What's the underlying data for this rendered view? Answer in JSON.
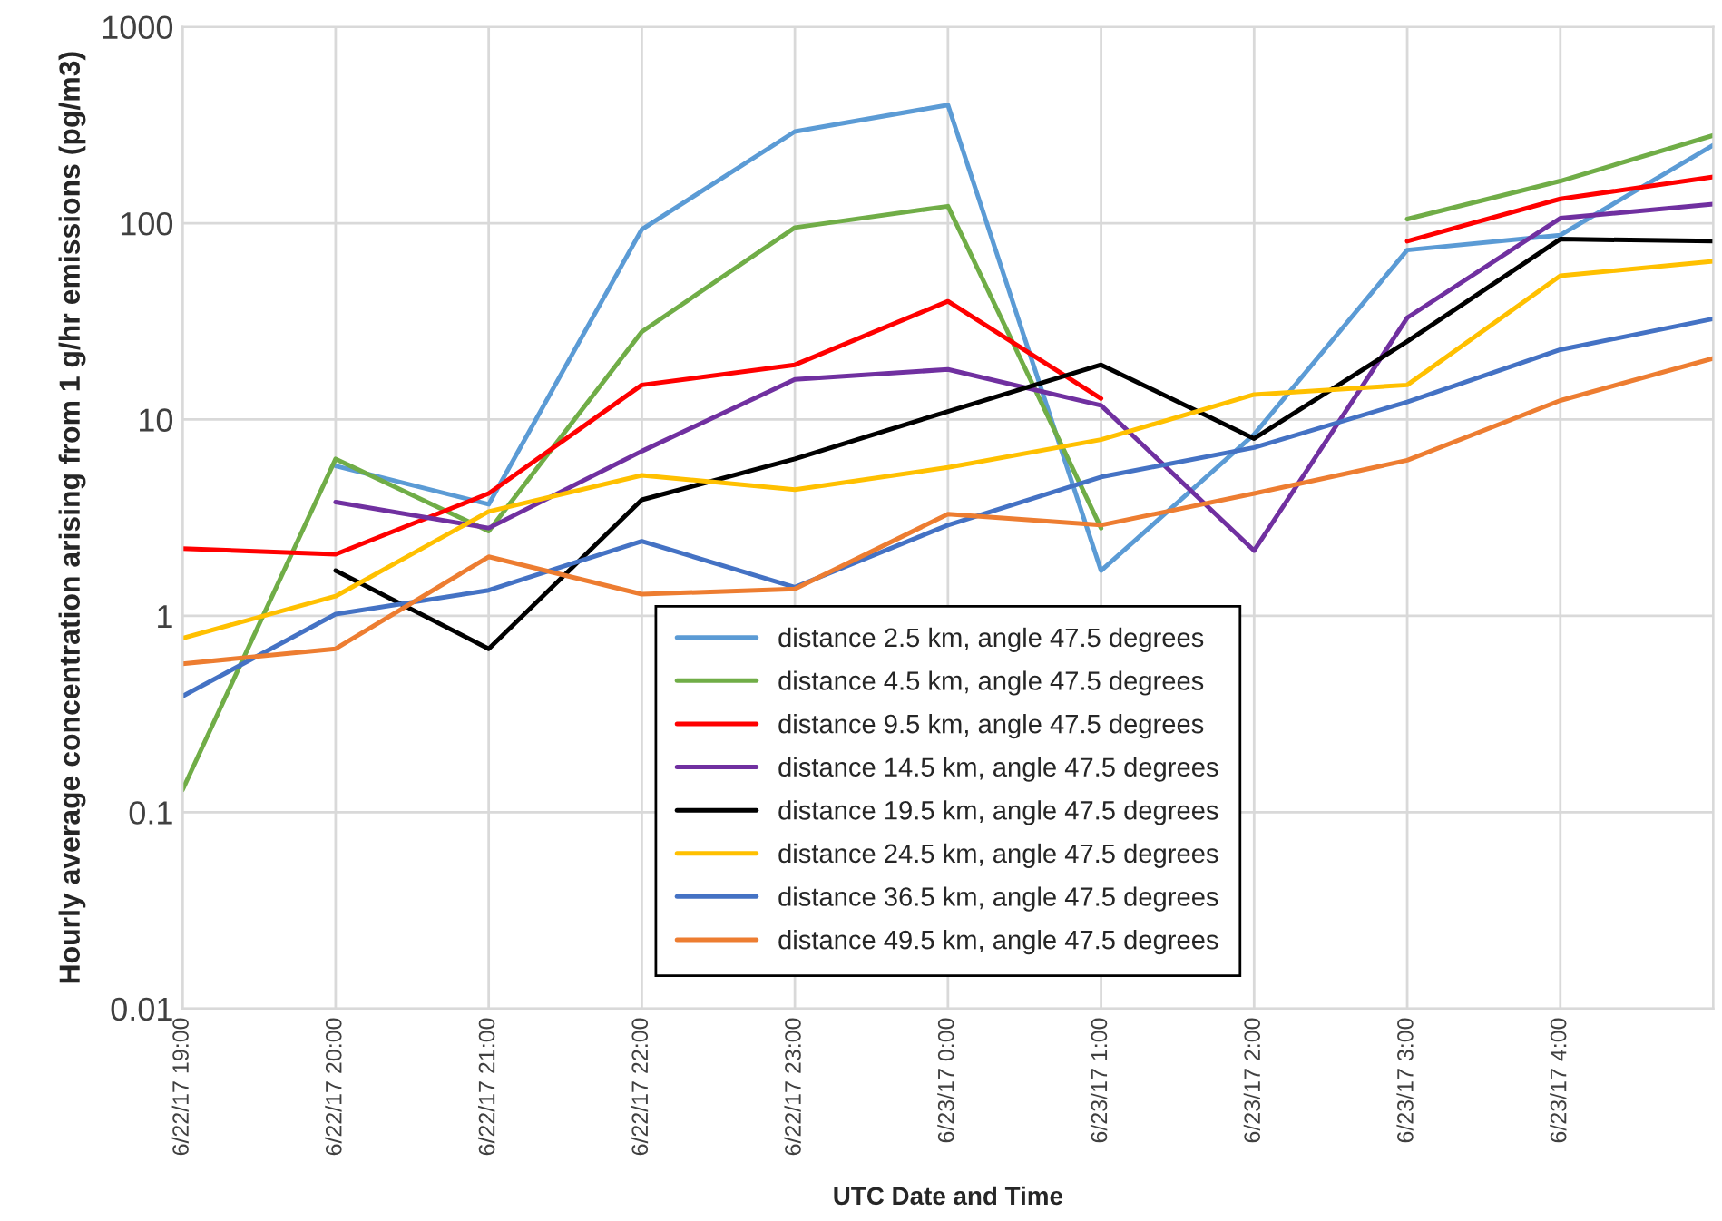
{
  "chart_data": {
    "type": "line",
    "xlabel": "UTC Date and Time",
    "ylabel": "Hourly average concentration arising from 1 g/hr emissions (pg/m3)",
    "categories": [
      "6/22/17 19:00",
      "6/22/17 20:00",
      "6/22/17 21:00",
      "6/22/17 22:00",
      "6/22/17 23:00",
      "6/23/17 0:00",
      "6/23/17 1:00",
      "6/23/17 2:00",
      "6/23/17 3:00",
      "6/23/17 4:00",
      null
    ],
    "log": "y",
    "ylim": [
      0.01,
      1000
    ],
    "yticks": [
      0.01,
      0.1,
      1,
      10,
      100,
      1000
    ],
    "grid": true,
    "legend": "bottom",
    "marker": "none",
    "line_style": "solid",
    "series": [
      {
        "name": "distance 2.5 km, angle 47.5 degrees",
        "color": "#5b9bd5",
        "values": [
          null,
          5.8,
          3.7,
          93,
          293,
          400,
          1.7,
          8.4,
          73,
          87,
          250
        ]
      },
      {
        "name": "distance 4.5 km, angle 47.5 degrees",
        "color": "#70ad47",
        "values": [
          0.13,
          6.3,
          2.7,
          28,
          95,
          122,
          2.8,
          null,
          105,
          164,
          280
        ]
      },
      {
        "name": "distance 9.5 km, angle 47.5 degrees",
        "color": "#ff0000",
        "values": [
          2.2,
          2.06,
          4.2,
          15,
          19,
          40,
          12.8,
          null,
          81,
          133,
          172
        ]
      },
      {
        "name": "distance 14.5 km, angle 47.5 degrees",
        "color": "#7030a0",
        "values": [
          null,
          3.8,
          2.8,
          6.9,
          16,
          18,
          11.8,
          2.15,
          33,
          106,
          125
        ]
      },
      {
        "name": "distance 19.5 km, angle 47.5 degrees",
        "color": "#000000",
        "values": [
          null,
          1.7,
          0.68,
          3.9,
          6.3,
          11,
          19,
          8.0,
          25,
          83,
          81
        ]
      },
      {
        "name": "distance 24.5 km, angle 47.5 degrees",
        "color": "#ffc000",
        "values": [
          0.77,
          1.26,
          3.4,
          5.2,
          4.4,
          5.7,
          7.9,
          13.4,
          15,
          54,
          64
        ]
      },
      {
        "name": "distance 36.5 km, angle 47.5 degrees",
        "color": "#4472c4",
        "values": [
          0.39,
          1.02,
          1.35,
          2.4,
          1.4,
          2.9,
          5.1,
          7.2,
          12.3,
          22.7,
          32.6
        ]
      },
      {
        "name": "distance 49.5 km, angle 47.5 degrees",
        "color": "#ed7d31",
        "values": [
          0.57,
          0.68,
          2.0,
          1.29,
          1.37,
          3.3,
          2.9,
          4.2,
          6.2,
          12.5,
          20.5
        ]
      }
    ]
  }
}
